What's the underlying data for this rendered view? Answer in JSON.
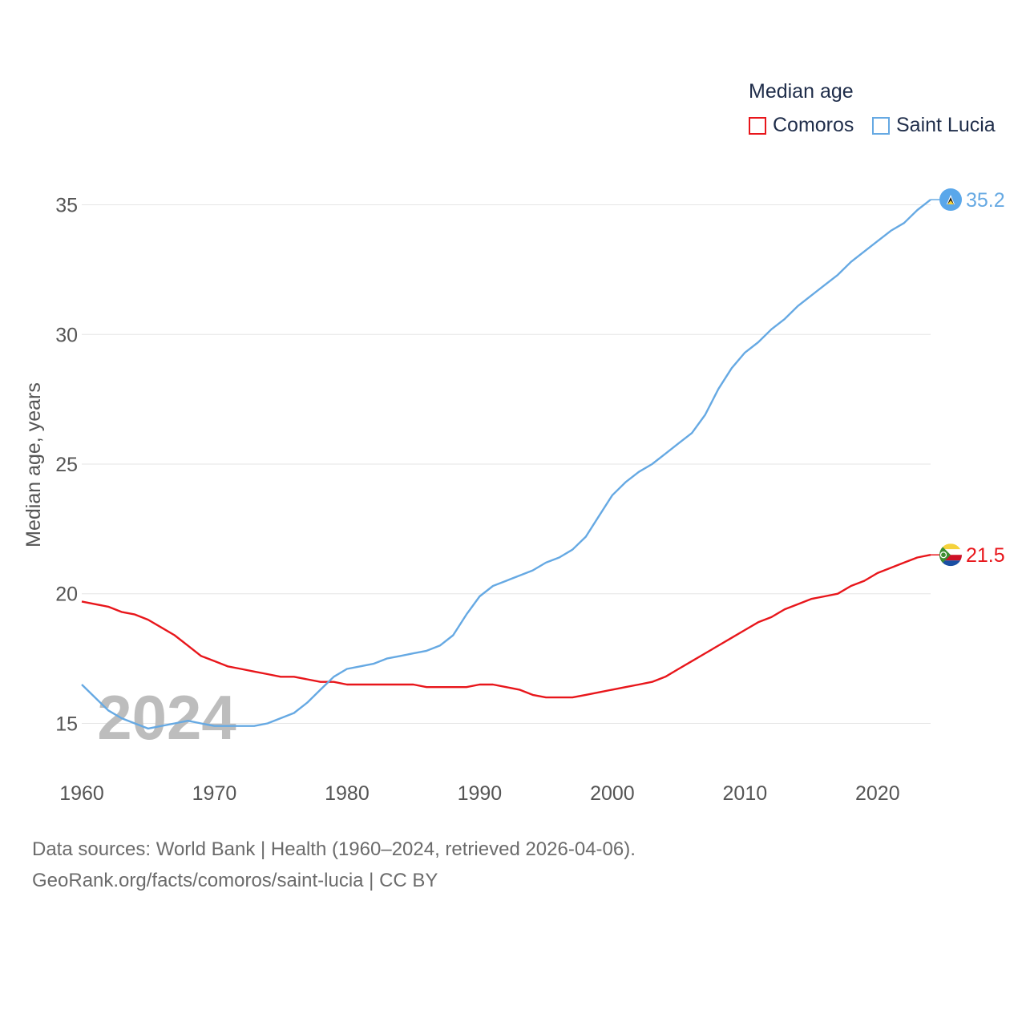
{
  "legend": {
    "title": "Median age",
    "items": [
      {
        "label": "Comoros",
        "color": "#e8161b"
      },
      {
        "label": "Saint Lucia",
        "color": "#66a9e3"
      }
    ]
  },
  "footer": {
    "line1": "Data sources: World Bank | Health (1960–2024, retrieved 2026-04-06).",
    "line2": "GeoRank.org/facts/comoros/saint-lucia | CC BY"
  },
  "chart_data": {
    "type": "line",
    "title": "Median age",
    "ylabel": "Median age, years",
    "xlabel": "",
    "year_label": "2024",
    "xlim": [
      1960,
      2024
    ],
    "ylim": [
      13.5,
      36.5
    ],
    "x_ticks": [
      1960,
      1970,
      1980,
      1990,
      2000,
      2010,
      2020
    ],
    "y_ticks": [
      15,
      20,
      25,
      30,
      35
    ],
    "grid": true,
    "legend_position": "top-right",
    "x": [
      1960,
      1961,
      1962,
      1963,
      1964,
      1965,
      1966,
      1967,
      1968,
      1969,
      1970,
      1971,
      1972,
      1973,
      1974,
      1975,
      1976,
      1977,
      1978,
      1979,
      1980,
      1981,
      1982,
      1983,
      1984,
      1985,
      1986,
      1987,
      1988,
      1989,
      1990,
      1991,
      1992,
      1993,
      1994,
      1995,
      1996,
      1997,
      1998,
      1999,
      2000,
      2001,
      2002,
      2003,
      2004,
      2005,
      2006,
      2007,
      2008,
      2009,
      2010,
      2011,
      2012,
      2013,
      2014,
      2015,
      2016,
      2017,
      2018,
      2019,
      2020,
      2021,
      2022,
      2023,
      2024
    ],
    "series": [
      {
        "name": "Comoros",
        "color": "#e8161b",
        "end_label": "21.5",
        "values": [
          19.7,
          19.6,
          19.5,
          19.3,
          19.2,
          19.0,
          18.7,
          18.4,
          18.0,
          17.6,
          17.4,
          17.2,
          17.1,
          17.0,
          16.9,
          16.8,
          16.8,
          16.7,
          16.6,
          16.6,
          16.5,
          16.5,
          16.5,
          16.5,
          16.5,
          16.5,
          16.4,
          16.4,
          16.4,
          16.4,
          16.5,
          16.5,
          16.4,
          16.3,
          16.1,
          16.0,
          16.0,
          16.0,
          16.1,
          16.2,
          16.3,
          16.4,
          16.5,
          16.6,
          16.8,
          17.1,
          17.4,
          17.7,
          18.0,
          18.3,
          18.6,
          18.9,
          19.1,
          19.4,
          19.6,
          19.8,
          19.9,
          20.0,
          20.3,
          20.5,
          20.8,
          21.0,
          21.2,
          21.4,
          21.5
        ]
      },
      {
        "name": "Saint Lucia",
        "color": "#66a9e3",
        "end_label": "35.2",
        "values": [
          16.5,
          16.0,
          15.5,
          15.2,
          15.0,
          14.8,
          14.9,
          15.0,
          15.1,
          15.0,
          14.9,
          14.9,
          14.9,
          14.9,
          15.0,
          15.2,
          15.4,
          15.8,
          16.3,
          16.8,
          17.1,
          17.2,
          17.3,
          17.5,
          17.6,
          17.7,
          17.8,
          18.0,
          18.4,
          19.2,
          19.9,
          20.3,
          20.5,
          20.7,
          20.9,
          21.2,
          21.4,
          21.7,
          22.2,
          23.0,
          23.8,
          24.3,
          24.7,
          25.0,
          25.4,
          25.8,
          26.2,
          26.9,
          27.9,
          28.7,
          29.3,
          29.7,
          30.2,
          30.6,
          31.1,
          31.5,
          31.9,
          32.3,
          32.8,
          33.2,
          33.6,
          34.0,
          34.3,
          34.8,
          35.2
        ]
      }
    ]
  }
}
